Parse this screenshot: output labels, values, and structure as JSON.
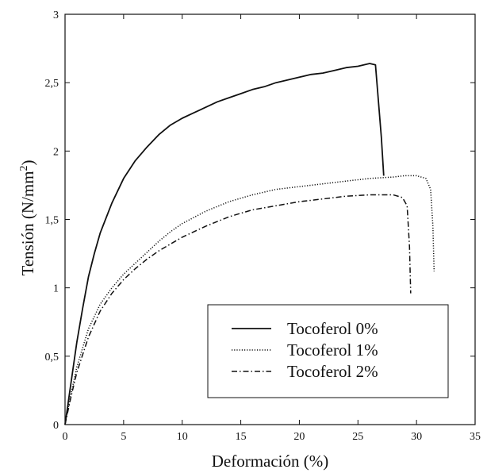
{
  "chart_data": {
    "type": "line",
    "title": "",
    "xlabel": "Deformación (%)",
    "ylabel": {
      "text": "Tensión (N/mm",
      "sup": "2",
      "close": ")"
    },
    "xlim": [
      0,
      35
    ],
    "ylim": [
      0,
      3
    ],
    "x_ticks": [
      "0",
      "5",
      "10",
      "15",
      "20",
      "25",
      "30",
      "35"
    ],
    "y_ticks": [
      "0",
      "0,5",
      "1",
      "1,5",
      "2",
      "2,5",
      "3"
    ],
    "x_tick_values": [
      0,
      5,
      10,
      15,
      20,
      25,
      30,
      35
    ],
    "y_tick_values": [
      0,
      0.5,
      1,
      1.5,
      2,
      2.5,
      3
    ],
    "grid": false,
    "legend_position": "bottom-right",
    "series": [
      {
        "name": "Tocoferol 0%",
        "style": "solid",
        "x": [
          0,
          0.5,
          1,
          1.5,
          2,
          2.5,
          3,
          4,
          5,
          6,
          7,
          8,
          9,
          10,
          11,
          12,
          13,
          14,
          15,
          16,
          17,
          18,
          19,
          20,
          21,
          22,
          23,
          24,
          25,
          26,
          26.5,
          27,
          27.2
        ],
        "y": [
          0,
          0.3,
          0.6,
          0.85,
          1.08,
          1.25,
          1.4,
          1.62,
          1.8,
          1.93,
          2.03,
          2.12,
          2.19,
          2.24,
          2.28,
          2.32,
          2.36,
          2.39,
          2.42,
          2.45,
          2.47,
          2.5,
          2.52,
          2.54,
          2.56,
          2.57,
          2.59,
          2.61,
          2.62,
          2.64,
          2.63,
          2.1,
          1.82
        ]
      },
      {
        "name": "Tocoferol 1%",
        "style": "dotted",
        "x": [
          0,
          0.5,
          1,
          2,
          3,
          4,
          5,
          6,
          7,
          8,
          9,
          10,
          12,
          14,
          16,
          18,
          20,
          22,
          24,
          26,
          28,
          29,
          30,
          30.8,
          31.2,
          31.4,
          31.5
        ],
        "y": [
          0,
          0.22,
          0.42,
          0.7,
          0.88,
          1.0,
          1.1,
          1.18,
          1.26,
          1.34,
          1.41,
          1.47,
          1.56,
          1.63,
          1.68,
          1.72,
          1.74,
          1.76,
          1.78,
          1.8,
          1.81,
          1.82,
          1.82,
          1.8,
          1.72,
          1.45,
          1.12
        ]
      },
      {
        "name": "Tocoferol 2%",
        "style": "dashdot",
        "x": [
          0,
          0.5,
          1,
          2,
          3,
          4,
          5,
          6,
          7,
          8,
          9,
          10,
          12,
          14,
          16,
          18,
          20,
          22,
          24,
          26,
          27,
          28,
          28.8,
          29.2,
          29.4,
          29.5
        ],
        "y": [
          0,
          0.2,
          0.38,
          0.64,
          0.83,
          0.96,
          1.06,
          1.14,
          1.21,
          1.27,
          1.32,
          1.37,
          1.45,
          1.52,
          1.57,
          1.6,
          1.63,
          1.65,
          1.67,
          1.68,
          1.68,
          1.68,
          1.66,
          1.6,
          1.3,
          0.96
        ]
      }
    ]
  }
}
